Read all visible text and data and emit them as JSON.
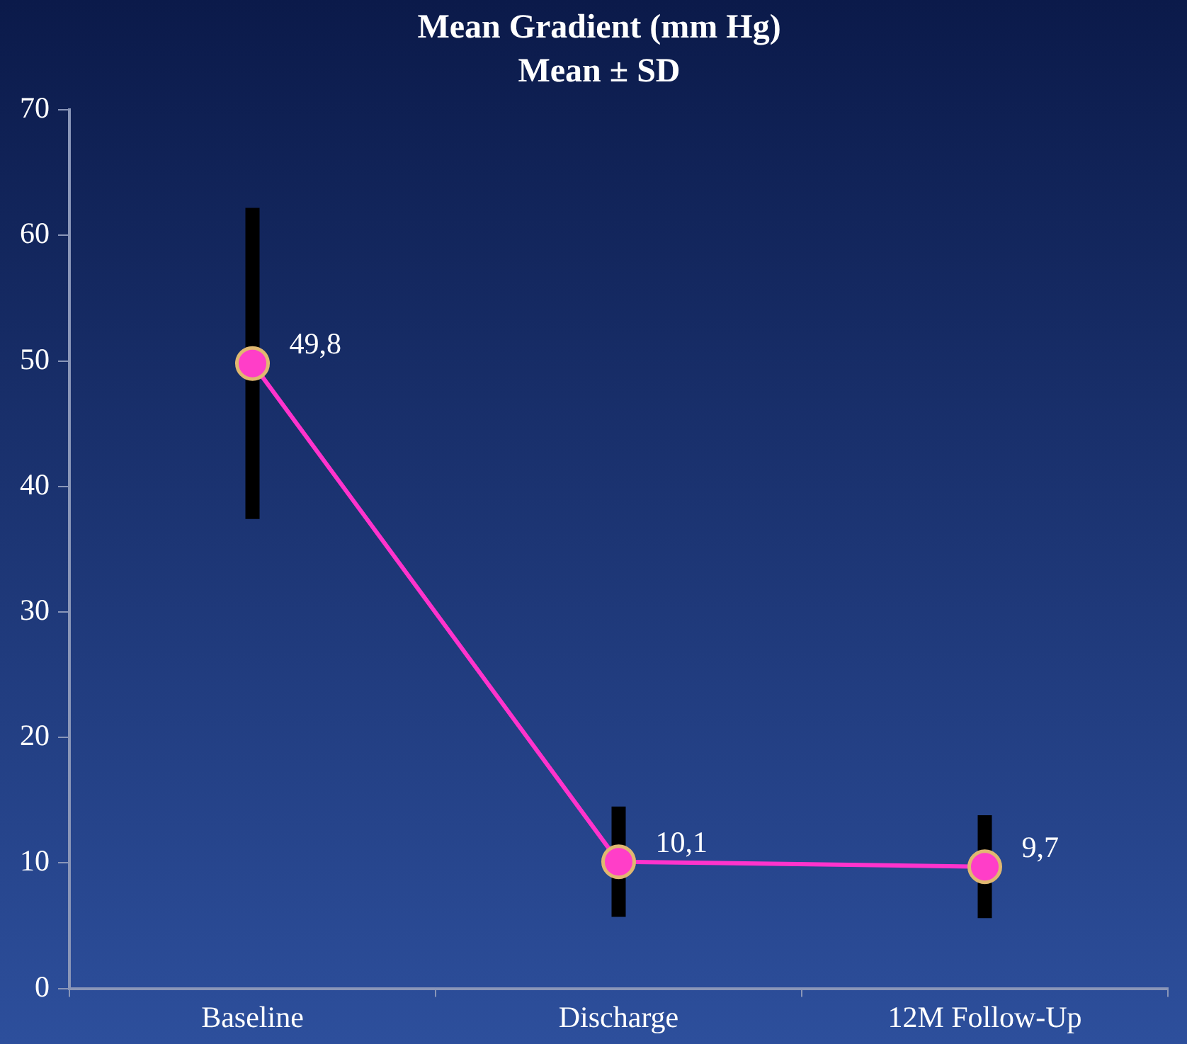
{
  "chart_data": {
    "type": "line",
    "title": "Mean Gradient (mm Hg)",
    "subtitle": "Mean ± SD",
    "categories": [
      "Baseline",
      "Discharge",
      "12M Follow-Up"
    ],
    "series": [
      {
        "color": "#ff33cc",
        "values": [
          49.8,
          10.1,
          9.7
        ],
        "errors": [
          12.4,
          4.4,
          4.1
        ],
        "value_labels": [
          "49,8",
          "10,1",
          "9,7"
        ]
      }
    ],
    "ylim": [
      0,
      70
    ],
    "yticks": [
      0,
      10,
      20,
      30,
      40,
      50,
      60,
      70
    ],
    "grid": false,
    "legend": false,
    "marker": "circle",
    "line_style": "solid"
  }
}
